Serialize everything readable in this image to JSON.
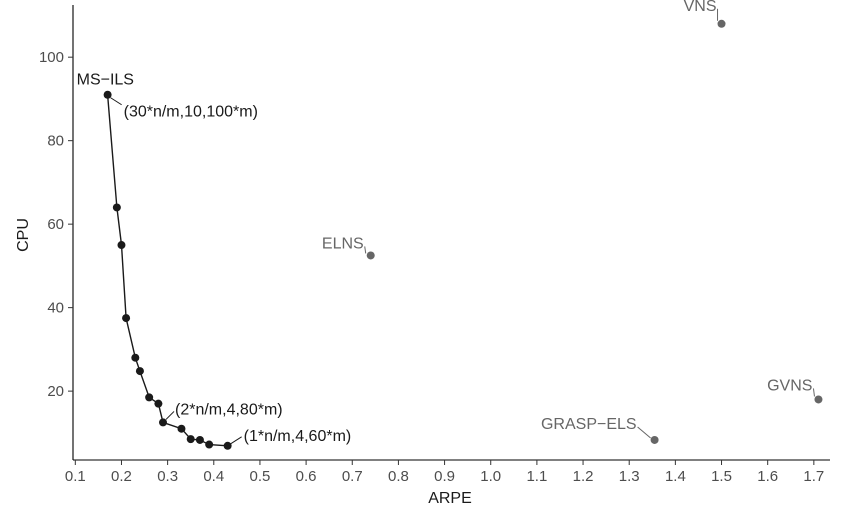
{
  "chart_data": {
    "type": "scatter",
    "title": "",
    "xlabel": "ARPE",
    "ylabel": "CPU",
    "xlim": [
      0.095,
      1.735
    ],
    "ylim": [
      3.5,
      112.5
    ],
    "x_ticks": [
      "0.1",
      "0.2",
      "0.3",
      "0.4",
      "0.5",
      "0.6",
      "0.7",
      "0.8",
      "0.9",
      "1.0",
      "1.1",
      "1.2",
      "1.3",
      "1.4",
      "1.5",
      "1.6",
      "1.7"
    ],
    "y_ticks": [
      "20",
      "40",
      "60",
      "80",
      "100"
    ],
    "grid": false,
    "legend": "none",
    "colors": {
      "pareto": "#1a1a1a",
      "other": "#666666"
    },
    "series": [
      {
        "x": [
          0.17,
          0.19,
          0.2,
          0.21,
          0.23,
          0.24,
          0.26,
          0.28,
          0.29,
          0.33,
          0.35,
          0.37,
          0.39,
          0.43
        ],
        "y": [
          91,
          64,
          55,
          37.5,
          28,
          24.8,
          18.5,
          17,
          12.5,
          11,
          8.5,
          8.3,
          7.2,
          6.9
        ],
        "connected": true,
        "color": "#1a1a1a"
      },
      {
        "points": [
          {
            "label": "VNS",
            "x": 1.5,
            "y": 108
          },
          {
            "label": "ELNS",
            "x": 0.74,
            "y": 52.5
          },
          {
            "label": "GVNS",
            "x": 1.71,
            "y": 18
          },
          {
            "label": "GRASP−ELS",
            "x": 1.355,
            "y": 8.3
          }
        ],
        "connected": false,
        "color": "#666666"
      }
    ],
    "annotations": [
      {
        "text": "MS−ILS",
        "x": 0.17,
        "y": 91
      },
      {
        "text": "(30*n/m,10,100*m)",
        "x": 0.17,
        "y": 91
      },
      {
        "text": "(2*n/m,4,80*m)",
        "x": 0.29,
        "y": 12.5
      },
      {
        "text": "(1*n/m,4,60*m)",
        "x": 0.43,
        "y": 6.9
      }
    ]
  }
}
